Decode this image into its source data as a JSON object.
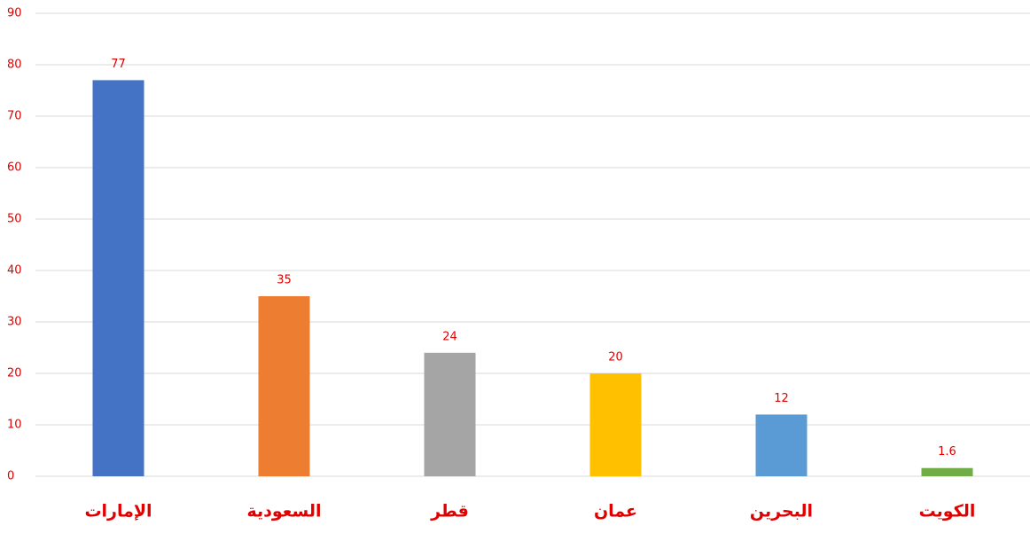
{
  "chart_data": {
    "type": "bar",
    "categories": [
      "الإمارات",
      "السعودية",
      "قطر",
      "عمان",
      "البحرين",
      "الكويت"
    ],
    "values": [
      77,
      35,
      24,
      20,
      12,
      1.6
    ],
    "colors": [
      "#4472c4",
      "#ed7d31",
      "#a5a5a5",
      "#ffc000",
      "#5b9bd5",
      "#70ad47"
    ],
    "ylim": [
      0,
      90
    ],
    "yticks": [
      0,
      10,
      20,
      30,
      40,
      50,
      60,
      70,
      80,
      90
    ],
    "grid": true
  }
}
